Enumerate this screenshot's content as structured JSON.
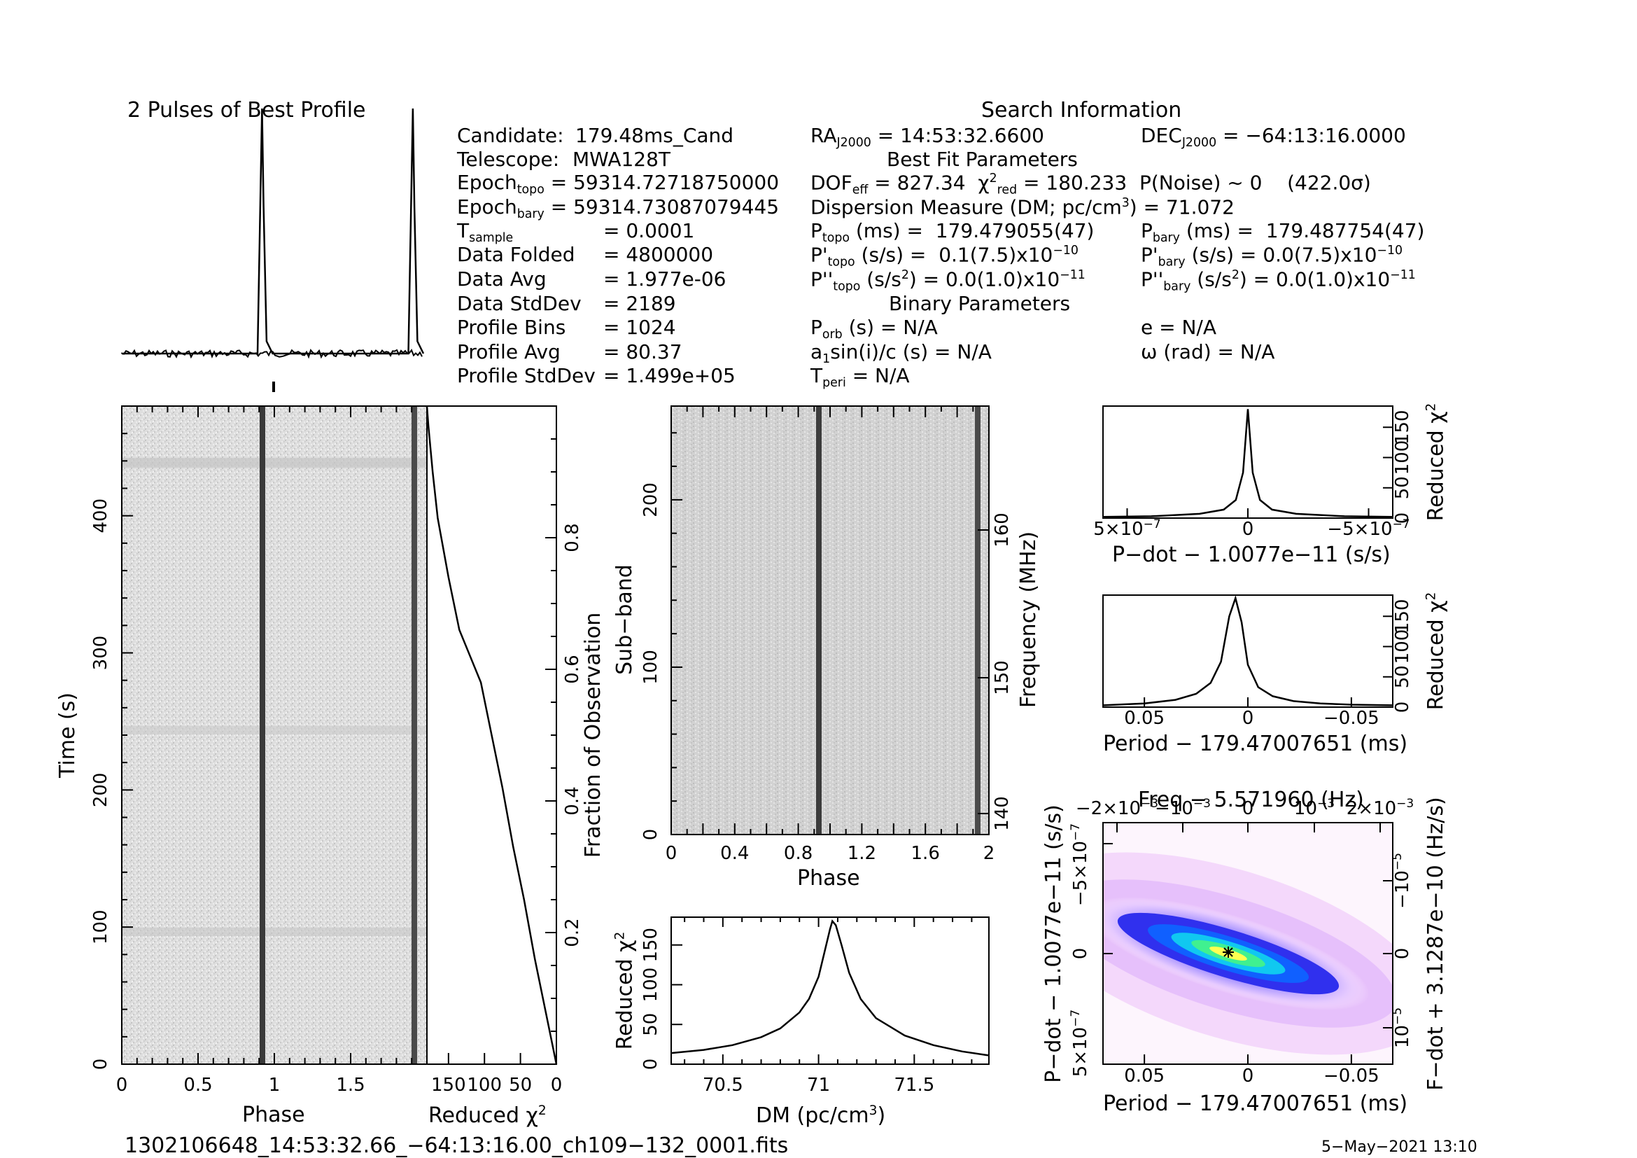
{
  "profile_title": "2 Pulses of Best Profile",
  "search_info": {
    "title": "Search Information",
    "candidate_label": "Candidate:",
    "candidate": "179.48ms_Cand",
    "telescope_label": "Telescope:",
    "telescope": "MWA128T",
    "epoch_topo_label": "Epoch",
    "epoch_topo_sub": "topo",
    "epoch_topo": "= 59314.72718750000",
    "epoch_bary_label": "Epoch",
    "epoch_bary_sub": "bary",
    "epoch_bary": "= 59314.73087079445",
    "tsample_label": "T",
    "tsample_sub": "sample",
    "tsample": "=  0.0001",
    "data_folded_label": "Data Folded",
    "data_folded": "=  4800000",
    "data_avg_label": "Data Avg",
    "data_avg": "=  1.977e-06",
    "data_std_label": "Data StdDev",
    "data_std": "=  2189",
    "profile_bins_label": "Profile Bins",
    "profile_bins": "=  1024",
    "profile_avg_label": "Profile Avg",
    "profile_avg": "=  80.37",
    "profile_std_label": "Profile StdDev",
    "profile_std": "=  1.499e+05",
    "ra_label": "RA",
    "ra_sub": "J2000",
    "ra": "= 14:53:32.6600",
    "dec_label": "DEC",
    "dec_sub": "J2000",
    "dec": "= −64:13:16.0000",
    "best_fit_title": "Best Fit Parameters",
    "dof_label": "DOF",
    "dof_sub": "eff",
    "dof": "= 827.34",
    "chi_label": "χ",
    "chi_sup": "2",
    "chi_sub": "red",
    "chi": "= 180.233",
    "pnoise": "P(Noise) ~ 0",
    "sigma": "(422.0σ)",
    "dm_label": "Dispersion Measure (DM; pc/cm",
    "dm_sup": "3",
    "dm": ") = 71.072",
    "ptopo_label": "P",
    "ptopo_sub": "topo",
    "ptopo_unit": "(ms) =",
    "ptopo": "179.479055(47)",
    "pbary_label": "P",
    "pbary_sub": "bary",
    "pbary_unit": "(ms) =",
    "pbary": "179.487754(47)",
    "pdtopo_label": "P'",
    "pdtopo_sub": "topo",
    "pdtopo_unit": "(s/s) =",
    "pdtopo": "0.1(7.5)x10",
    "pdtopo_exp": "−10",
    "pdbary_label": "P'",
    "pdbary_sub": "bary",
    "pdbary_unit": "(s/s) =",
    "pdbary": "0.0(7.5)x10",
    "pdbary_exp": "−10",
    "pddtopo_label": "P''",
    "pddtopo_sub": "topo",
    "pddtopo_unit": "(s/s",
    "pddtopo_unit_sup": "2",
    "pddtopo": ") = 0.0(1.0)x10",
    "pddtopo_exp": "−11",
    "pddbary_label": "P''",
    "pddbary_sub": "bary",
    "pddbary_unit": "(s/s",
    "pddbary_unit_sup": "2",
    "pddbary": ") = 0.0(1.0)x10",
    "pddbary_exp": "−11",
    "binary_title": "Binary Parameters",
    "porb_label": "P",
    "porb_sub": "orb",
    "porb": "(s) = N/A",
    "ecc": "e = N/A",
    "a1_label": "a",
    "a1_sub": "1",
    "a1": "sin(i)/c (s) = N/A",
    "omega": "ω (rad) = N/A",
    "tperi_label": "T",
    "tperi_sub": "peri",
    "tperi": "= N/A"
  },
  "footer": {
    "filename": "1302106648_14:53:32.66_−64:13:16.00_ch109−132_0001.fits",
    "date": "5−May−2021 13:10"
  },
  "chart_data": [
    {
      "type": "line",
      "name": "profile",
      "title": "2 Pulses of Best Profile",
      "x": [
        0,
        0.5,
        0.9,
        0.93,
        0.94,
        0.96,
        1.0,
        1.5,
        1.9,
        1.93,
        1.94,
        1.96,
        2.0
      ],
      "values": [
        0.0,
        0.0,
        0.0,
        1.0,
        0.6,
        0.05,
        0.0,
        0.0,
        0.0,
        1.0,
        0.6,
        0.05,
        0.0
      ],
      "xlim": [
        0,
        2
      ]
    },
    {
      "type": "heatmap",
      "name": "time-phase",
      "xlabel": "Phase",
      "ylabel": "Time (s)",
      "x_ticks": [
        "0",
        "0.5",
        "1",
        "1.5"
      ],
      "y_ticks": [
        "0",
        "100",
        "200",
        "300",
        "400"
      ],
      "xlim": [
        0,
        2
      ],
      "ylim": [
        0,
        480
      ],
      "pulse_phase": [
        0.93,
        1.93
      ]
    },
    {
      "type": "line",
      "name": "chi2-vs-time",
      "xlabel": "Reduced χ",
      "xlabel_sup": "2",
      "ylabel_right": "Fraction of Observation",
      "x_ticks": [
        "150",
        "100",
        "50",
        "0"
      ],
      "y_ticks": [
        "0.2",
        "0.4",
        "0.6",
        "0.8"
      ],
      "xlim": [
        180,
        0
      ],
      "ylim": [
        0,
        1
      ],
      "x": [
        0,
        15,
        30,
        45,
        60,
        75,
        90,
        105,
        120,
        135,
        150,
        165,
        172,
        178,
        180
      ],
      "values": [
        0.0,
        0.08,
        0.16,
        0.25,
        0.33,
        0.42,
        0.5,
        0.58,
        0.62,
        0.66,
        0.74,
        0.83,
        0.9,
        0.97,
        1.0
      ]
    },
    {
      "type": "heatmap",
      "name": "subband-phase",
      "xlabel": "Phase",
      "ylabel": "Sub−band",
      "ylabel_right": "Frequency (MHz)",
      "x_ticks": [
        "0",
        "0.4",
        "0.8",
        "1.2",
        "1.6",
        "2"
      ],
      "y_ticks": [
        "0",
        "100",
        "200"
      ],
      "freq_ticks": [
        "140",
        "150",
        "160"
      ],
      "xlim": [
        0,
        2
      ],
      "ylim": [
        0,
        256
      ],
      "pulse_phase": [
        0.93,
        1.93
      ]
    },
    {
      "type": "line",
      "name": "dm-curve",
      "xlabel": "DM (pc/cm",
      "xlabel_sup": "3",
      "ylabel": "Reduced χ",
      "ylabel_sup": "2",
      "x_ticks": [
        "70.5",
        "71",
        "71.5"
      ],
      "y_ticks": [
        "0",
        "50",
        "100",
        "150"
      ],
      "xlim": [
        70.23,
        71.89
      ],
      "ylim": [
        0,
        185
      ],
      "x": [
        70.23,
        70.4,
        70.55,
        70.7,
        70.8,
        70.9,
        70.95,
        71.0,
        71.03,
        71.06,
        71.072,
        71.09,
        71.12,
        71.16,
        71.22,
        71.3,
        71.45,
        71.6,
        71.75,
        71.89
      ],
      "values": [
        14,
        18,
        24,
        34,
        45,
        65,
        82,
        110,
        140,
        170,
        180,
        175,
        150,
        115,
        82,
        58,
        36,
        24,
        16,
        11
      ]
    },
    {
      "type": "line",
      "name": "pdot-curve",
      "xlabel": "P−dot − 1.0077e−11 (s/s)",
      "ylabel": "Reduced χ",
      "ylabel_sup": "2",
      "x_ticks": [
        "5×10",
        "0",
        "−5×10"
      ],
      "x_tick_exp": "−7",
      "y_ticks": [
        "0",
        "50",
        "100",
        "150"
      ],
      "xlim": [
        6e-07,
        -6e-07
      ],
      "ylim": [
        0,
        185
      ],
      "x": [
        6e-07,
        4e-07,
        2e-07,
        1e-07,
        5e-08,
        2e-08,
        0.0,
        -2e-08,
        -5e-08,
        -1e-07,
        -2e-07,
        -4e-07,
        -6e-07
      ],
      "values": [
        2,
        3,
        7,
        14,
        30,
        75,
        180,
        75,
        30,
        14,
        7,
        3,
        2
      ]
    },
    {
      "type": "line",
      "name": "period-curve",
      "xlabel": "Period − 179.47007651 (ms)",
      "ylabel": "Reduced χ",
      "ylabel_sup": "2",
      "x_ticks": [
        "0.05",
        "0",
        "−0.05"
      ],
      "y_ticks": [
        "0",
        "50",
        "100",
        "150"
      ],
      "xlim": [
        0.07,
        -0.07
      ],
      "ylim": [
        0,
        185
      ],
      "x": [
        0.07,
        0.05,
        0.035,
        0.025,
        0.018,
        0.013,
        0.009,
        0.006,
        0.003,
        0.0,
        -0.005,
        -0.012,
        -0.022,
        -0.035,
        -0.05,
        -0.07
      ],
      "values": [
        3,
        6,
        12,
        22,
        40,
        75,
        150,
        180,
        140,
        70,
        33,
        18,
        10,
        6,
        4,
        3
      ]
    },
    {
      "type": "heatmap",
      "name": "period-pdot",
      "title": "Freq − 5.571960 (Hz)",
      "xlabel": "Period − 179.47007651 (ms)",
      "ylabel": "P−dot − 1.0077e−11 (s/s)",
      "ylabel_right": "F−dot + 3.1287e−10 (Hz/s)",
      "x_ticks": [
        "0.05",
        "0",
        "−0.05"
      ],
      "top_ticks": [
        "−2×10",
        "−10",
        "0",
        "10",
        "2×10"
      ],
      "top_tick_exp": "−3",
      "y_ticks": [
        "5×10",
        "0",
        "−5×10"
      ],
      "y_tick_exp": "−7",
      "right_ticks": [
        "−10",
        "0",
        "10"
      ],
      "right_tick_exp": "−5",
      "xlim": [
        0.07,
        -0.07
      ],
      "best_fit": [
        0,
        0
      ]
    }
  ]
}
